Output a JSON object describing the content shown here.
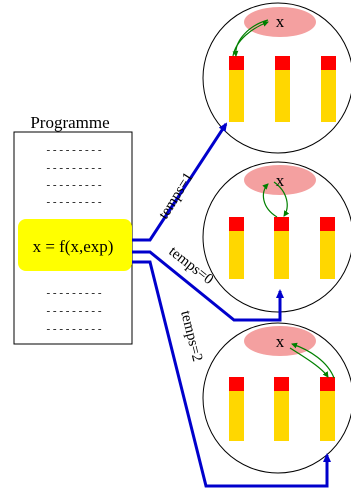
{
  "program": {
    "title": "Programme",
    "statement": "x = f(x,exp)",
    "dash_line": "- - - - - - - - -"
  },
  "arrows": [
    {
      "label": "temps=1"
    },
    {
      "label": "temps=0"
    },
    {
      "label": "temps=2"
    }
  ],
  "processors": [
    {
      "variable": "x",
      "arrow_target_column": 1
    },
    {
      "variable": "x",
      "arrow_target_column": 2
    },
    {
      "variable": "x",
      "arrow_target_column": 3
    }
  ],
  "colors": {
    "highlight": "#ffff00",
    "arrow": "#0000cc",
    "bar": "#ffd700",
    "bar_top": "#ff0000",
    "variable_blob": "#f4a0a0",
    "loop_arrow": "#008000"
  }
}
